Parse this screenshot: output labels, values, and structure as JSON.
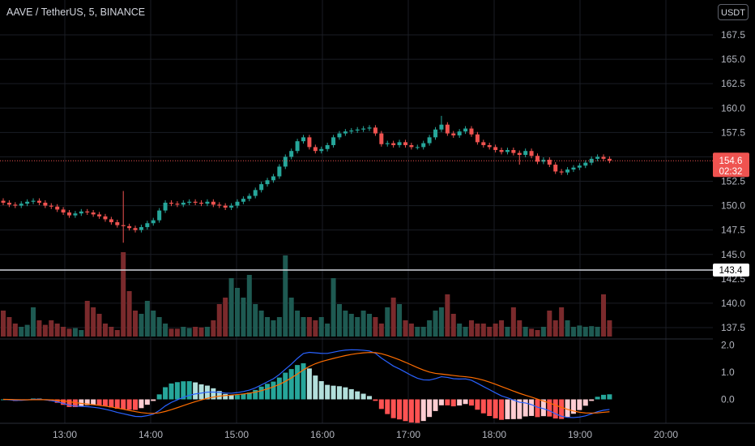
{
  "header": {
    "title": "AAVE / TetherUS, 5, BINANCE",
    "currency_button": "USDT"
  },
  "colors": {
    "background": "#000000",
    "up": "#26a69a",
    "down": "#ef5350",
    "up_volume": "#1e5a52",
    "down_volume": "#7a2a2c",
    "grid": "#1a1d24",
    "macd": "#2962ff",
    "signal": "#ff6d00",
    "hist_up_strong": "#26a69a",
    "hist_up_weak": "#b2dfdb",
    "hist_down_strong": "#ff5252",
    "hist_down_weak": "#ffcdd2",
    "hline": "#d1d4dc"
  },
  "chart_data": [
    {
      "type": "candlestick",
      "x_axis_ticks": [
        "13:00",
        "14:00",
        "15:00",
        "16:00",
        "17:00",
        "18:00",
        "19:00",
        "20:00"
      ],
      "y_axis_ticks": [
        137.5,
        140.0,
        142.5,
        145.0,
        147.5,
        150.0,
        152.5,
        155.0,
        157.5,
        160.0,
        162.5,
        165.0,
        167.5
      ],
      "ylim": [
        136.5,
        169.5
      ],
      "current_price": {
        "value": "154.6",
        "countdown": "02:32"
      },
      "horizontal_line": {
        "value": "143.4"
      },
      "closes": [
        150.3,
        150.1,
        150.0,
        150.2,
        150.4,
        150.5,
        150.3,
        150.0,
        149.9,
        149.6,
        149.3,
        149.0,
        149.2,
        149.4,
        149.3,
        149.1,
        148.9,
        148.6,
        148.3,
        148.0,
        147.9,
        147.7,
        147.5,
        147.8,
        148.2,
        148.5,
        149.5,
        150.3,
        150.2,
        150.1,
        150.3,
        150.4,
        150.3,
        150.2,
        150.4,
        150.1,
        150.0,
        149.8,
        150.0,
        150.4,
        150.7,
        151.0,
        151.6,
        152.2,
        152.6,
        153.0,
        154.0,
        155.0,
        155.6,
        156.6,
        157.0,
        156.0,
        155.6,
        155.8,
        156.2,
        157.0,
        157.4,
        157.6,
        157.7,
        157.8,
        157.9,
        158.0,
        157.4,
        156.3,
        156.4,
        156.2,
        156.5,
        156.2,
        156.0,
        156.0,
        156.4,
        157.0,
        157.8,
        158.3,
        157.4,
        157.2,
        157.6,
        157.9,
        157.3,
        156.5,
        156.2,
        156.0,
        155.7,
        155.5,
        155.7,
        155.4,
        155.2,
        155.6,
        155.1,
        154.5,
        154.7,
        154.2,
        153.5,
        153.4,
        153.7,
        153.9,
        154.1,
        154.4,
        154.8,
        155.0,
        154.8,
        154.6
      ]
    },
    {
      "type": "bar",
      "name": "Volume",
      "values": [
        4,
        3,
        2,
        1.5,
        1.8,
        4.5,
        2.5,
        1.8,
        2.5,
        2,
        1.5,
        1.2,
        1.3,
        1,
        5.5,
        4.5,
        3.5,
        2,
        1.5,
        1,
        13,
        7,
        4,
        3.5,
        5.5,
        4,
        3,
        2,
        1.2,
        1.2,
        1.5,
        1.3,
        1.5,
        1.4,
        1.5,
        2.5,
        5,
        6,
        9,
        7.5,
        6,
        9.5,
        5,
        4,
        3,
        2.5,
        3,
        12.5,
        6,
        4,
        3,
        3,
        2.5,
        3,
        2,
        9,
        5,
        4,
        3.5,
        3,
        4,
        3.5,
        3,
        2,
        4.5,
        6,
        5,
        2.5,
        2,
        1.5,
        1.5,
        2.5,
        4,
        4.5,
        6.5,
        3.5,
        2,
        1.5,
        2.5,
        2,
        2,
        1.5,
        2,
        2.5,
        1.5,
        4.5,
        2.5,
        1.5,
        1.2,
        1,
        1.5,
        4,
        2.5,
        4.5,
        2.5,
        1.5,
        1.7,
        1.5,
        1.6,
        1.5,
        6.5,
        2.5
      ]
    },
    {
      "type": "line",
      "name": "MACD",
      "y_axis_ticks": [
        0.0,
        1.0,
        2.0
      ],
      "ylim": [
        -1.0,
        2.2
      ]
    }
  ]
}
